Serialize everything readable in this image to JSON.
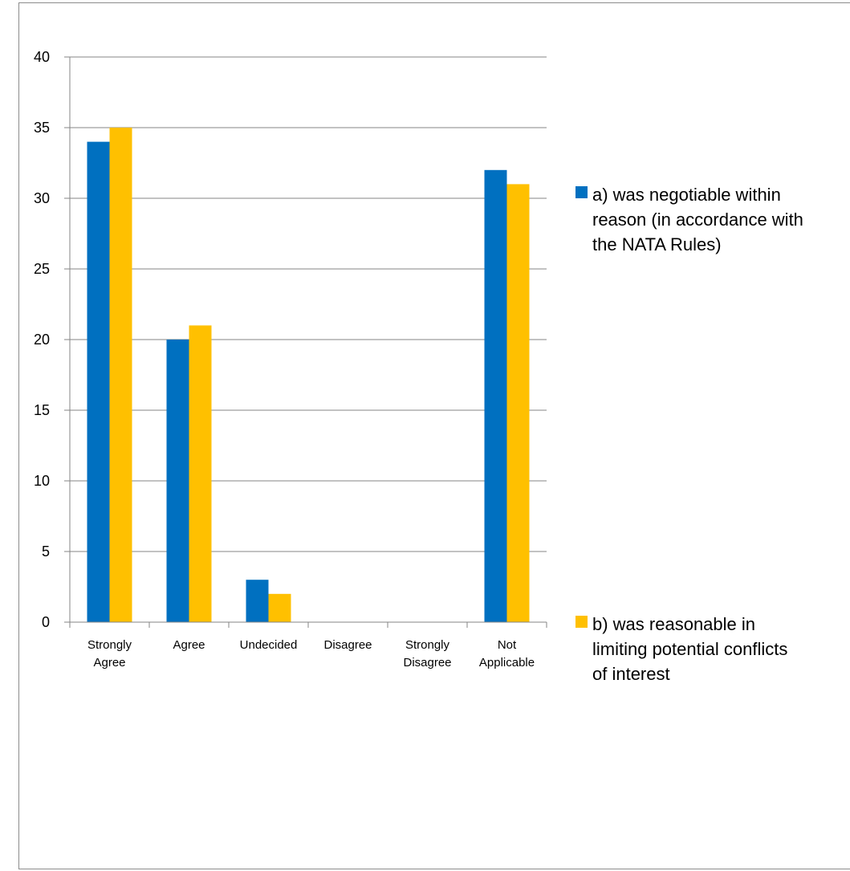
{
  "chart_data": {
    "type": "bar",
    "categories": [
      [
        "Strongly",
        "Agree"
      ],
      [
        "Agree"
      ],
      [
        "Undecided"
      ],
      [
        "Disagree"
      ],
      [
        "Strongly",
        "Disagree"
      ],
      [
        "Not",
        "Applicable"
      ]
    ],
    "series": [
      {
        "name": [
          "a) was negotiable within",
          "reason (in accordance with",
          "the NATA Rules)"
        ],
        "color": "#0070C0",
        "values": [
          34,
          20,
          3,
          0,
          0,
          32
        ]
      },
      {
        "name": [
          "b) was reasonable in",
          "limiting potential conflicts",
          "of interest"
        ],
        "color": "#FFC000",
        "values": [
          35,
          21,
          2,
          0,
          0,
          31
        ]
      }
    ],
    "ylim": [
      0,
      40
    ],
    "yticks": [
      0,
      5,
      10,
      15,
      20,
      25,
      30,
      35,
      40
    ],
    "grid": true,
    "legend": "right"
  }
}
